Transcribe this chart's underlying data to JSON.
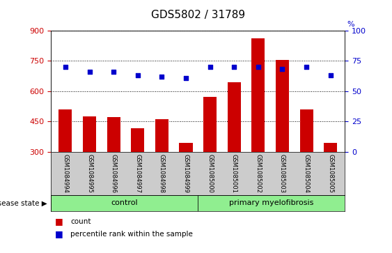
{
  "title": "GDS5802 / 31789",
  "samples": [
    "GSM1084994",
    "GSM1084995",
    "GSM1084996",
    "GSM1084997",
    "GSM1084998",
    "GSM1084999",
    "GSM1085000",
    "GSM1085001",
    "GSM1085002",
    "GSM1085003",
    "GSM1085004",
    "GSM1085005"
  ],
  "counts": [
    510,
    475,
    470,
    415,
    460,
    345,
    570,
    645,
    860,
    755,
    510,
    345
  ],
  "percentiles": [
    70,
    66,
    66,
    63,
    62,
    61,
    70,
    70,
    70,
    68,
    70,
    63
  ],
  "n_control": 6,
  "n_myelofibrosis": 6,
  "bar_color": "#cc0000",
  "dot_color": "#0000cc",
  "ylim_left": [
    300,
    900
  ],
  "ylim_right": [
    0,
    100
  ],
  "yticks_left": [
    300,
    450,
    600,
    750,
    900
  ],
  "yticks_right": [
    0,
    25,
    50,
    75,
    100
  ],
  "control_color": "#90ee90",
  "myelofibrosis_color": "#90ee90",
  "tick_area_color": "#cccccc",
  "label_fontsize": 6,
  "title_fontsize": 11
}
